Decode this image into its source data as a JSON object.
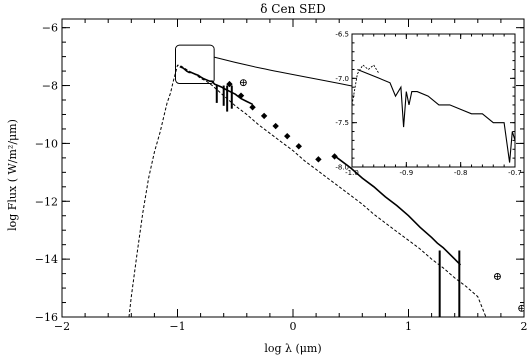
{
  "chart_data": {
    "type": "line",
    "title": "δ Cen SED",
    "xlabel": "log λ (μm)",
    "ylabel": "log Flux  ( W/m²/μm)",
    "xlim": [
      -2,
      2
    ],
    "ylim": [
      -16,
      -5.7
    ],
    "x_ticks": [
      -2,
      -1,
      0,
      1,
      2
    ],
    "y_ticks": [
      -16,
      -14,
      -12,
      -10,
      -8,
      -6
    ],
    "grid": false,
    "legend": "none",
    "series": [
      {
        "style": "dashed",
        "x": [
          -1.42,
          -1.4,
          -1.35,
          -1.3,
          -1.25,
          -1.2,
          -1.15,
          -1.12,
          -1.09,
          -1.06,
          -1.04,
          -1.02,
          -1.0,
          -0.98,
          -0.96,
          -0.94,
          -0.9,
          -0.85,
          -0.8,
          -0.75,
          -0.7,
          -0.6,
          -0.5,
          -0.4,
          -0.3,
          -0.2,
          -0.1,
          0.0,
          0.1,
          0.2,
          0.3,
          0.4,
          0.5,
          0.6,
          0.7,
          0.8,
          0.9,
          1.0,
          1.1,
          1.2,
          1.3,
          1.4,
          1.5,
          1.6,
          1.67
        ],
        "y": [
          -16.0,
          -15.3,
          -13.8,
          -12.4,
          -11.2,
          -10.3,
          -9.6,
          -9.1,
          -8.6,
          -8.25,
          -7.9,
          -7.6,
          -7.3,
          -7.3,
          -7.35,
          -7.4,
          -7.5,
          -7.6,
          -7.75,
          -7.85,
          -8.0,
          -8.35,
          -8.7,
          -9.0,
          -9.35,
          -9.65,
          -9.95,
          -10.25,
          -10.6,
          -10.9,
          -11.2,
          -11.5,
          -11.8,
          -12.1,
          -12.45,
          -12.75,
          -13.05,
          -13.35,
          -13.65,
          -14.0,
          -14.3,
          -14.65,
          -14.95,
          -15.3,
          -16.0
        ]
      },
      {
        "style": "solid",
        "x": [
          -0.98,
          -0.95,
          -0.92,
          -0.9,
          -0.88,
          -0.85,
          -0.82,
          -0.8,
          -0.78,
          -0.75,
          -0.72,
          -0.7,
          -0.68,
          -0.65,
          -0.62,
          -0.6,
          -0.55,
          -0.5,
          -0.45,
          -0.4,
          -0.35
        ],
        "y": [
          -7.35,
          -7.4,
          -7.5,
          -7.55,
          -7.55,
          -7.6,
          -7.65,
          -7.7,
          -7.75,
          -7.8,
          -7.85,
          -7.85,
          -7.95,
          -8.0,
          -8.05,
          -8.1,
          -8.2,
          -8.3,
          -8.45,
          -8.55,
          -8.65
        ]
      },
      {
        "style": "solid",
        "x": [
          0.35,
          0.4,
          0.5,
          0.6,
          0.7,
          0.8,
          0.9,
          1.0,
          1.1,
          1.2,
          1.25,
          1.3,
          1.35,
          1.4,
          1.45
        ],
        "y": [
          -10.4,
          -10.55,
          -10.85,
          -11.2,
          -11.5,
          -11.85,
          -12.15,
          -12.5,
          -12.9,
          -13.25,
          -13.45,
          -13.6,
          -13.8,
          -14.0,
          -14.2
        ]
      }
    ],
    "points": {
      "marker": "diamond",
      "x": [
        -0.55,
        -0.45,
        -0.35,
        -0.25,
        -0.15,
        -0.05,
        0.05,
        0.22,
        0.36
      ],
      "y": [
        -7.95,
        -8.35,
        -8.75,
        -9.05,
        -9.4,
        -9.75,
        -10.1,
        -10.55,
        -10.45
      ]
    },
    "open_points": {
      "marker": "circled-plus",
      "x": [
        -0.43,
        1.77,
        1.98
      ],
      "y": [
        -7.9,
        -14.6,
        -15.7
      ]
    },
    "inset": {
      "xlim": [
        -1.0,
        -0.7
      ],
      "ylim": [
        -8.0,
        -6.5
      ],
      "x_ticks": [
        -1.0,
        -0.9,
        -0.8,
        -0.7
      ],
      "x_tick_labels": [
        "-1.0",
        "-0.9",
        "-0.8",
        "-0.7"
      ],
      "y_ticks": [
        -8.0,
        -7.5,
        -7.0,
        -6.5
      ],
      "y_tick_labels": [
        "-8.0",
        "-7.5",
        "-7.0",
        "-6.5"
      ],
      "series": [
        {
          "style": "dashed",
          "x": [
            -1.0,
            -0.99,
            -0.98,
            -0.97,
            -0.96,
            -0.95
          ],
          "y": [
            -7.3,
            -6.95,
            -6.85,
            -6.9,
            -6.85,
            -6.95
          ]
        },
        {
          "style": "solid",
          "x": [
            -0.99,
            -0.97,
            -0.95,
            -0.93,
            -0.92,
            -0.91,
            -0.905,
            -0.9,
            -0.895,
            -0.89,
            -0.88,
            -0.86,
            -0.84,
            -0.82,
            -0.8,
            -0.78,
            -0.76,
            -0.74,
            -0.72,
            -0.71,
            -0.705,
            -0.7
          ],
          "y": [
            -6.9,
            -6.95,
            -7.0,
            -7.05,
            -7.2,
            -7.1,
            -7.55,
            -7.15,
            -7.3,
            -7.15,
            -7.15,
            -7.2,
            -7.3,
            -7.3,
            -7.35,
            -7.4,
            -7.4,
            -7.5,
            -7.5,
            -7.95,
            -7.6,
            -7.7
          ]
        }
      ]
    }
  }
}
